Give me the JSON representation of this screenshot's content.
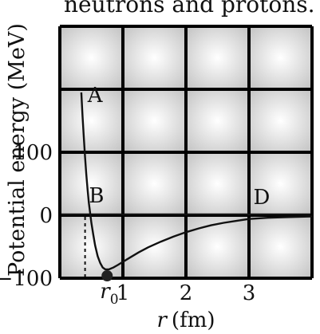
{
  "page_top_text": "neutrons and protons.",
  "chart_data": {
    "type": "line",
    "title": "",
    "ylabel": "Potential energy (MeV)",
    "xlabel_var": "r",
    "xlabel_unit": "(fm)",
    "xlim": [
      0,
      4
    ],
    "ylim": [
      -100,
      300
    ],
    "grid": true,
    "x_ticks": [
      {
        "value": 1,
        "label": "1"
      },
      {
        "value": 2,
        "label": "2"
      },
      {
        "value": 3,
        "label": "3"
      }
    ],
    "y_ticks": [
      {
        "value": 100,
        "label": "100"
      },
      {
        "value": 0,
        "label": "0"
      },
      {
        "value": -100,
        "label": "−100"
      }
    ],
    "series": [
      {
        "x": [
          0.34,
          0.36,
          0.38,
          0.4,
          0.42,
          0.44,
          0.46,
          0.48,
          0.5,
          0.53,
          0.56,
          0.6,
          0.64,
          0.68,
          0.72,
          0.78,
          0.85,
          0.92,
          1.0,
          1.1,
          1.25,
          1.4,
          1.6,
          1.8,
          2.0,
          2.2,
          2.4,
          2.6,
          2.8,
          3.0,
          3.3,
          3.6,
          4.0
        ],
        "y": [
          195,
          158,
          124,
          92,
          64,
          40,
          20,
          4,
          -12,
          -31,
          -48,
          -65,
          -76,
          -83,
          -86,
          -86,
          -83,
          -79,
          -74,
          -68,
          -59,
          -51,
          -42,
          -34,
          -27,
          -21,
          -16,
          -12,
          -9,
          -6,
          -4,
          -3,
          -2
        ]
      }
    ],
    "annotations": [
      {
        "label": "A",
        "x": 0.44,
        "y": 180
      },
      {
        "label": "B",
        "x": 0.46,
        "y": 20
      },
      {
        "label": "D",
        "x": 3.07,
        "y": 18
      }
    ],
    "r0_marker": {
      "x": 0.75,
      "label_base": "r",
      "label_sub": "0"
    },
    "dashed_drop_x": 0.4
  }
}
